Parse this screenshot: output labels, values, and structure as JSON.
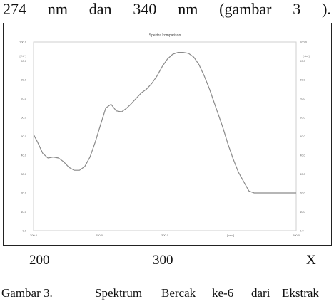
{
  "top_text": [
    "274",
    "nm",
    "dan",
    "340",
    "nm",
    "(gambar",
    "3",
    ")."
  ],
  "chart_data": {
    "type": "line",
    "title": "Spektra komparison",
    "x_ticks": [
      "200.0",
      "250.0",
      "300.0",
      "[ nm ]",
      "400.0"
    ],
    "y_ticks": [
      "0.0",
      "10.0",
      "20.0",
      "30.0",
      "40.0",
      "50.0",
      "60.0",
      "70.0",
      "80.0",
      "90.0",
      "100.0"
    ],
    "y_unit_left": "[ %f ]",
    "y_unit_right": "[ Au ]",
    "xlim": [
      200,
      400
    ],
    "ylim": [
      0,
      100
    ],
    "grid": false,
    "series": [
      {
        "x": [
          200,
          203,
          207,
          211,
          215,
          219,
          223,
          227,
          231,
          235,
          239,
          243,
          247,
          251,
          255,
          259,
          263,
          267,
          271,
          274,
          278,
          282,
          286,
          290,
          294,
          298,
          302,
          306,
          310,
          314,
          318,
          322,
          326,
          330,
          334,
          338,
          340,
          344,
          348,
          352,
          356,
          360,
          364,
          368,
          372,
          376,
          380,
          384,
          388,
          392,
          396,
          400
        ],
        "y": [
          51,
          47,
          41,
          38.5,
          39,
          38.5,
          36.5,
          33.5,
          32,
          32,
          34,
          39,
          47,
          56,
          65,
          67,
          63.5,
          63,
          65,
          67,
          70,
          73,
          75,
          78,
          82,
          87,
          91,
          93.5,
          94.5,
          94.5,
          94,
          92,
          88,
          82,
          75,
          67,
          63,
          55,
          46,
          38,
          31,
          26,
          21,
          20,
          20,
          20,
          20,
          20,
          20,
          20,
          20,
          20
        ]
      }
    ],
    "color": "#8a8a8a"
  },
  "axis_labels": [
    "200",
    "300",
    "X"
  ],
  "caption": [
    "Gambar 3.",
    "Spektrum",
    "Bercak",
    "ke-6",
    "dari",
    "Ekstrak"
  ]
}
